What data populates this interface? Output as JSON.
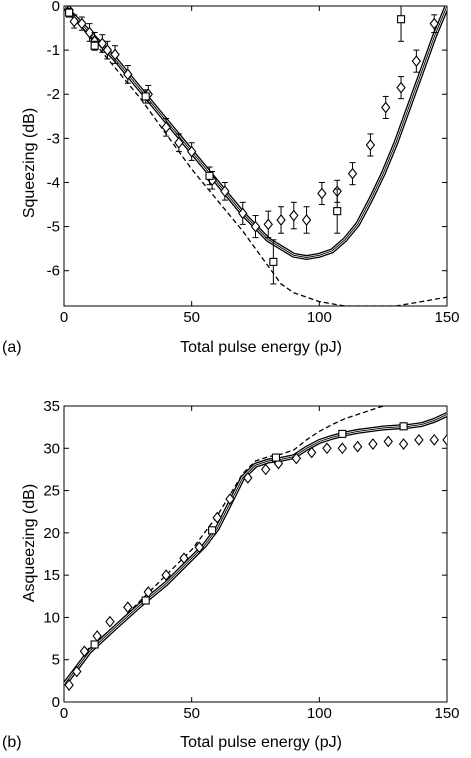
{
  "chart_data": [
    {
      "type": "line",
      "panel_label": "(a)",
      "xlabel": "Total pulse energy (pJ)",
      "ylabel": "Squeezing (dB)",
      "xlim": [
        0,
        150
      ],
      "ylim": [
        -6.8,
        0
      ],
      "xticks": [
        0,
        50,
        100,
        150
      ],
      "yticks": [
        0,
        -1,
        -2,
        -3,
        -4,
        -5,
        -6
      ],
      "grid": false,
      "legend": "none",
      "series": [
        {
          "style": "dashed",
          "x": [
            0,
            10,
            20,
            30,
            40,
            50,
            60,
            70,
            80,
            85,
            90,
            100,
            110,
            120,
            130,
            140,
            150
          ],
          "y": [
            0,
            -0.7,
            -1.4,
            -2.1,
            -2.9,
            -3.7,
            -4.4,
            -5.1,
            -5.9,
            -6.3,
            -6.5,
            -6.7,
            -6.8,
            -6.8,
            -6.8,
            -6.7,
            -6.6
          ]
        },
        {
          "style": "solid-band",
          "x": [
            0,
            10,
            20,
            30,
            40,
            50,
            60,
            70,
            80,
            90,
            95,
            100,
            105,
            110,
            115,
            120,
            125,
            130,
            135,
            140,
            145,
            150
          ],
          "y": [
            0,
            -0.6,
            -1.2,
            -1.9,
            -2.6,
            -3.3,
            -4.0,
            -4.7,
            -5.3,
            -5.65,
            -5.7,
            -5.65,
            -5.55,
            -5.3,
            -4.95,
            -4.4,
            -3.8,
            -3.1,
            -2.3,
            -1.5,
            -0.7,
            0
          ]
        },
        {
          "style": "diamond-markers",
          "x": [
            2,
            4,
            7,
            10,
            12,
            15,
            17,
            20,
            25,
            33,
            40,
            45,
            50,
            58,
            63,
            70,
            75,
            80,
            85,
            90,
            95,
            101,
            107,
            113,
            120,
            126,
            132,
            138,
            145
          ],
          "y": [
            -0.1,
            -0.35,
            -0.4,
            -0.6,
            -0.8,
            -0.85,
            -1.0,
            -1.1,
            -1.55,
            -2.0,
            -2.75,
            -3.1,
            -3.3,
            -3.95,
            -4.2,
            -4.7,
            -5.0,
            -4.95,
            -4.85,
            -4.75,
            -4.85,
            -4.25,
            -4.2,
            -3.8,
            -3.15,
            -2.3,
            -1.85,
            -1.25,
            -0.4
          ],
          "err": [
            0.15,
            0.15,
            0.15,
            0.2,
            0.2,
            0.2,
            0.2,
            0.2,
            0.2,
            0.2,
            0.2,
            0.2,
            0.2,
            0.2,
            0.2,
            0.25,
            0.25,
            0.3,
            0.3,
            0.3,
            0.3,
            0.25,
            0.25,
            0.25,
            0.25,
            0.25,
            0.25,
            0.25,
            0.2
          ]
        },
        {
          "style": "square-markers",
          "x": [
            2,
            12,
            32,
            57,
            82,
            107,
            132
          ],
          "y": [
            -0.15,
            -0.9,
            -2.05,
            -3.85,
            -5.8,
            -4.65,
            -0.3
          ],
          "err": [
            0.1,
            0.1,
            0.15,
            0.2,
            0.5,
            0.5,
            0.5
          ]
        }
      ]
    },
    {
      "type": "line",
      "panel_label": "(b)",
      "xlabel": "Total pulse energy (pJ)",
      "ylabel": "Asqueezing (dB)",
      "xlim": [
        0,
        150
      ],
      "ylim": [
        0,
        35
      ],
      "xticks": [
        0,
        50,
        100,
        150
      ],
      "yticks": [
        0,
        5,
        10,
        15,
        20,
        25,
        30,
        35
      ],
      "grid": false,
      "legend": "none",
      "series": [
        {
          "style": "dashed",
          "x": [
            0,
            5,
            10,
            20,
            30,
            40,
            50,
            55,
            60,
            65,
            70,
            75,
            80,
            85,
            90,
            95,
            100,
            105,
            110,
            115,
            120,
            125,
            130
          ],
          "y": [
            2,
            4,
            6.5,
            9,
            12,
            15,
            18,
            20,
            22,
            24.5,
            27,
            28.5,
            29,
            29.3,
            29.8,
            31,
            32,
            32.8,
            33.5,
            34,
            34.5,
            35,
            35.3
          ]
        },
        {
          "style": "solid-band",
          "x": [
            0,
            5,
            10,
            20,
            30,
            40,
            50,
            55,
            60,
            65,
            70,
            75,
            80,
            85,
            90,
            95,
            100,
            105,
            110,
            115,
            120,
            125,
            130,
            135,
            140,
            145,
            150
          ],
          "y": [
            2,
            4,
            6,
            8.8,
            11.5,
            14,
            17,
            18.5,
            20.5,
            23.5,
            26.5,
            28,
            28.5,
            28.7,
            29,
            30,
            30.8,
            31.3,
            31.7,
            32,
            32.2,
            32.4,
            32.5,
            32.6,
            32.8,
            33.3,
            34
          ]
        },
        {
          "style": "diamond-markers",
          "x": [
            2,
            5,
            8,
            13,
            18,
            25,
            33,
            40,
            47,
            53,
            60,
            65,
            72,
            79,
            84,
            91,
            97,
            103,
            109,
            115,
            121,
            127,
            133,
            139,
            145,
            150
          ],
          "y": [
            2,
            3.6,
            6,
            7.8,
            9.5,
            11.2,
            13,
            15,
            17,
            18.3,
            21.8,
            24,
            26.5,
            27.5,
            28.2,
            28.8,
            29.5,
            30,
            30,
            30.2,
            30.5,
            30.8,
            30.5,
            31,
            31,
            31
          ]
        },
        {
          "style": "square-markers",
          "x": [
            12,
            32,
            58,
            83,
            109,
            133
          ],
          "y": [
            6.8,
            12,
            20.3,
            28.9,
            31.7,
            32.6
          ]
        }
      ]
    }
  ]
}
